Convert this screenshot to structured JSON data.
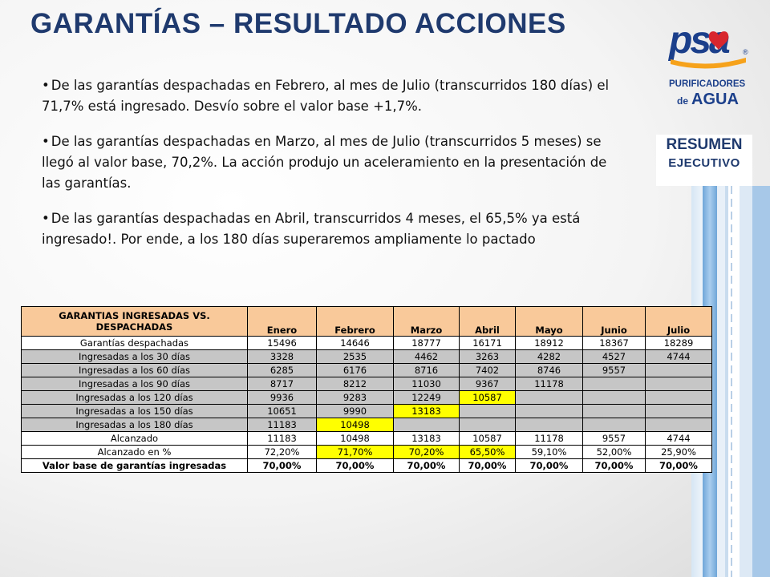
{
  "title": "GARANTÍAS – RESULTADO ACCIONES",
  "logo": {
    "brand": "psa",
    "line1": "PURIFICADORES",
    "line2_prefix": "de",
    "line2": "AGUA",
    "registered": "®",
    "colors": {
      "blue": "#1b3f8b",
      "red": "#d8262e",
      "orange": "#f6a21b"
    }
  },
  "section_label": {
    "line1": "RESUMEN",
    "line2": "EJECUTIVO"
  },
  "bullets": [
    "De las garantías despachadas en Febrero, al mes de  Julio (transcurridos 180 días) el 71,7% está ingresado. Desvío sobre el valor base +1,7%.",
    "De las garantías despachadas en Marzo, al mes de Julio (transcurridos 5 meses) se llegó al valor base, 70,2%. La acción produjo un aceleramiento en la presentación de las garantías.",
    "De las garantías despachadas en Abril, transcurridos 4 meses, el 65,5% ya está ingresado!. Por ende, a los 180 días superaremos ampliamente lo pactado"
  ],
  "bullet_symbol": "•",
  "table": {
    "corner_header": "GARANTIAS INGRESADAS VS. DESPACHADAS",
    "columns": [
      "Enero",
      "Febrero",
      "Marzo",
      "Abril",
      "Mayo",
      "Junio",
      "Julio"
    ],
    "rows": [
      {
        "label": "Garantías despachadas",
        "values": [
          "15496",
          "14646",
          "18777",
          "16171",
          "18912",
          "18367",
          "18289"
        ]
      },
      {
        "label": "Ingresadas a los 30 días",
        "values": [
          "3328",
          "2535",
          "4462",
          "3263",
          "4282",
          "4527",
          "4744"
        ]
      },
      {
        "label": "Ingresadas a los 60 días",
        "values": [
          "6285",
          "6176",
          "8716",
          "7402",
          "8746",
          "9557",
          ""
        ]
      },
      {
        "label": "Ingresadas a los 90 días",
        "values": [
          "8717",
          "8212",
          "11030",
          "9367",
          "11178",
          "",
          ""
        ]
      },
      {
        "label": "Ingresadas a los 120 días",
        "values": [
          "9936",
          "9283",
          "12249",
          "10587",
          "",
          "",
          ""
        ]
      },
      {
        "label": "Ingresadas a los 150 días",
        "values": [
          "10651",
          "9990",
          "13183",
          "",
          "",
          "",
          ""
        ]
      },
      {
        "label": "Ingresadas a los 180 días",
        "values": [
          "11183",
          "10498",
          "",
          "",
          "",
          "",
          ""
        ]
      },
      {
        "label": "Alcanzado",
        "values": [
          "11183",
          "10498",
          "13183",
          "10587",
          "11178",
          "9557",
          "4744"
        ]
      },
      {
        "label": "Alcanzado en %",
        "values": [
          "72,20%",
          "71,70%",
          "70,20%",
          "65,50%",
          "59,10%",
          "52,00%",
          "25,90%"
        ]
      },
      {
        "label": "Valor base de garantías ingresadas",
        "values": [
          "70,00%",
          "70,00%",
          "70,00%",
          "70,00%",
          "70,00%",
          "70,00%",
          "70,00%"
        ]
      }
    ],
    "colors": {
      "header": "#f9c99a",
      "gray_row": "#c6c6c6",
      "highlight": "#ffff00"
    }
  }
}
